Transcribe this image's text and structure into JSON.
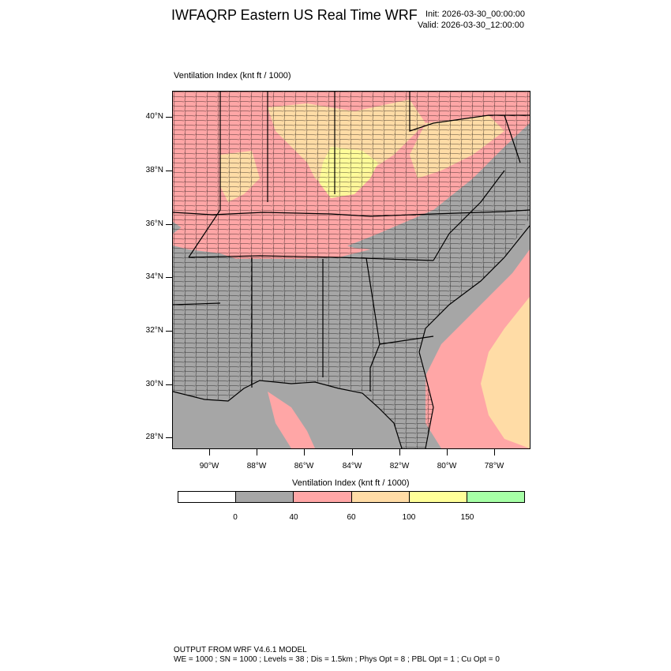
{
  "header": {
    "title": "IWFAQRP Eastern US Real Time WRF",
    "init": "Init: 2026-03-30_00:00:00",
    "valid": "Valid: 2026-03-30_12:00:00"
  },
  "map": {
    "field_label": "Ventilation Index   (knt ft / 1000)",
    "lat_labels": [
      "40°N",
      "38°N",
      "36°N",
      "34°N",
      "32°N",
      "30°N",
      "28°N"
    ],
    "lon_labels": [
      "90°W",
      "88°W",
      "86°W",
      "84°W",
      "82°W",
      "80°W",
      "78°W"
    ],
    "extent": {
      "lon_min": -91.5,
      "lon_max": -76.6,
      "lat_min": 27.5,
      "lat_max": 41.0
    },
    "colors": {
      "land_low": "#a6a6a6",
      "ocean": "#a6a6a6",
      "pink": "#ffa6a6",
      "tan": "#ffdca6",
      "yellow": "#ffff99",
      "state_line": "#000000",
      "county_line": "#000000"
    }
  },
  "colorbar": {
    "title": "Ventilation Index  (knt ft / 1000)",
    "colors": [
      "#ffffff",
      "#a6a6a6",
      "#ffa6a6",
      "#ffdca6",
      "#ffff99",
      "#a6ffa6"
    ],
    "labels": [
      "0",
      "40",
      "60",
      "100",
      "150"
    ]
  },
  "footer": {
    "line1": "OUTPUT FROM WRF V4.6.1 MODEL",
    "line2": "WE = 1000 ; SN = 1000 ; Levels = 38 ; Dis = 1.5km ; Phys Opt = 8 ; PBL Opt = 1 ; Cu Opt = 0"
  }
}
